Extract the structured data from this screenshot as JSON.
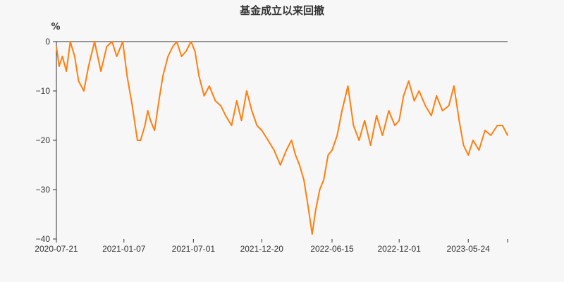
{
  "chart_data": {
    "type": "line",
    "title": "基金成立以来回撤",
    "ylabel": "%",
    "xlabel": "",
    "ylim": [
      -40,
      0
    ],
    "yticks": [
      0,
      -10,
      -20,
      -30,
      -40
    ],
    "xticks": [
      "2020-07-21",
      "2021-01-07",
      "2021-07-01",
      "2021-12-20",
      "2022-06-15",
      "2022-12-01",
      "2023-05-24"
    ],
    "xrange": [
      "2020-07-21",
      "2023-08-31"
    ],
    "grid": false,
    "legend": "none",
    "series": [
      {
        "color": "#ff7f0e",
        "x": [
          "2020-07-21",
          "2020-07-28",
          "2020-08-05",
          "2020-08-15",
          "2020-08-25",
          "2020-09-05",
          "2020-09-15",
          "2020-09-28",
          "2020-10-10",
          "2020-10-25",
          "2020-11-10",
          "2020-11-25",
          "2020-12-08",
          "2020-12-20",
          "2021-01-04",
          "2021-01-15",
          "2021-01-28",
          "2021-02-10",
          "2021-02-18",
          "2021-03-01",
          "2021-03-08",
          "2021-03-15",
          "2021-03-25",
          "2021-04-05",
          "2021-04-15",
          "2021-04-28",
          "2021-05-10",
          "2021-05-20",
          "2021-06-01",
          "2021-06-12",
          "2021-06-25",
          "2021-07-05",
          "2021-07-15",
          "2021-07-28",
          "2021-08-10",
          "2021-08-25",
          "2021-09-08",
          "2021-09-20",
          "2021-10-05",
          "2021-10-18",
          "2021-10-30",
          "2021-11-12",
          "2021-11-25",
          "2021-12-08",
          "2021-12-20",
          "2022-01-05",
          "2022-01-20",
          "2022-02-05",
          "2022-02-20",
          "2022-03-05",
          "2022-03-15",
          "2022-03-25",
          "2022-04-05",
          "2022-04-15",
          "2022-04-26",
          "2022-05-05",
          "2022-05-15",
          "2022-05-25",
          "2022-06-05",
          "2022-06-15",
          "2022-06-28",
          "2022-07-10",
          "2022-07-25",
          "2022-08-08",
          "2022-08-22",
          "2022-09-05",
          "2022-09-20",
          "2022-10-05",
          "2022-10-20",
          "2022-11-05",
          "2022-11-20",
          "2022-12-01",
          "2022-12-12",
          "2022-12-25",
          "2023-01-08",
          "2023-01-20",
          "2023-02-05",
          "2023-02-20",
          "2023-03-05",
          "2023-03-20",
          "2023-04-05",
          "2023-04-18",
          "2023-05-01",
          "2023-05-12",
          "2023-05-24",
          "2023-06-05",
          "2023-06-20",
          "2023-07-05",
          "2023-07-20",
          "2023-08-05",
          "2023-08-18",
          "2023-08-31"
        ],
        "y": [
          -1,
          -5,
          -3,
          -6,
          0,
          -3,
          -8,
          -10,
          -5,
          0,
          -6,
          -1,
          0,
          -3,
          0,
          -7,
          -13,
          -20,
          -20,
          -17,
          -14,
          -16,
          -18,
          -12,
          -7,
          -3,
          -1,
          0,
          -3,
          -2,
          0,
          -2,
          -7,
          -11,
          -9,
          -12,
          -13,
          -15,
          -17,
          -12,
          -16,
          -10,
          -14,
          -17,
          -18,
          -20,
          -22,
          -25,
          -22,
          -20,
          -23,
          -25,
          -28,
          -33,
          -39,
          -34,
          -30,
          -28,
          -23,
          -22,
          -19,
          -14,
          -9,
          -17,
          -20,
          -16,
          -21,
          -15,
          -19,
          -14,
          -17,
          -16,
          -11,
          -8,
          -12,
          -10,
          -13,
          -15,
          -11,
          -14,
          -13,
          -9,
          -16,
          -21,
          -23,
          -20,
          -22,
          -18,
          -19,
          -17,
          -17,
          -19
        ]
      }
    ]
  }
}
